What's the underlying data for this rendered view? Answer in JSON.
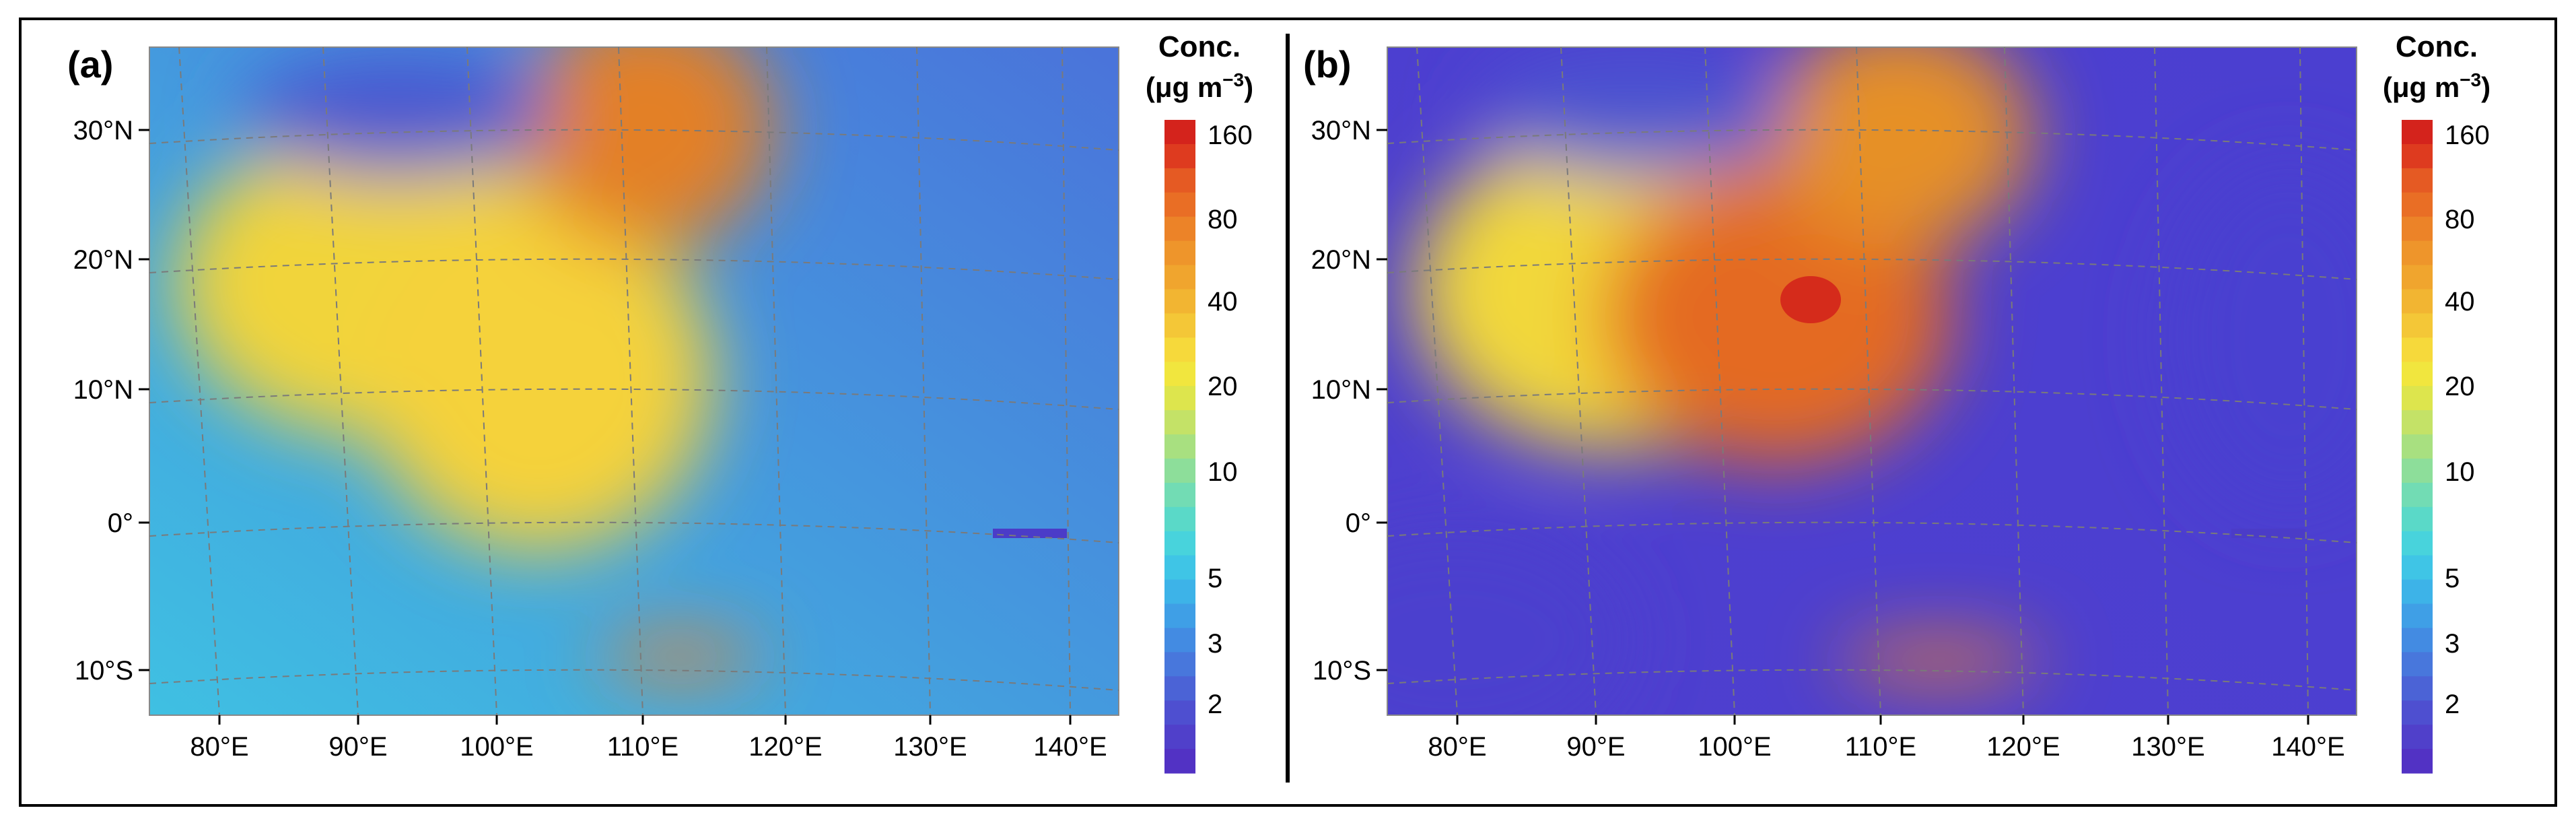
{
  "figure": {
    "panels": [
      {
        "label": "(a)",
        "map": "a"
      },
      {
        "label": "(b)",
        "map": "b"
      }
    ],
    "lat_ticks": [
      "30°N",
      "20°N",
      "10°N",
      "0°",
      "10°S"
    ],
    "lon_ticks": [
      "80°E",
      "90°E",
      "100°E",
      "110°E",
      "120°E",
      "130°E",
      "140°E"
    ],
    "colorbar": {
      "title_line1": "Conc.",
      "title_line2": "(μg m",
      "title_sup": "−3",
      "title_close": ")",
      "tick_labels": [
        "160",
        "80",
        "40",
        "20",
        "10",
        "5",
        "3",
        "2"
      ],
      "colors": [
        "#d4231c",
        "#de3b1f",
        "#e55a23",
        "#e96e25",
        "#ec8328",
        "#ee952b",
        "#f0a52e",
        "#f2b532",
        "#f4c737",
        "#f6d93b",
        "#f1e63e",
        "#dde54d",
        "#c4e267",
        "#a8e080",
        "#8dde9a",
        "#72dcb4",
        "#5ad9c8",
        "#48d3dc",
        "#3fc5e6",
        "#3db3e8",
        "#3f9fe6",
        "#438be2",
        "#4877dc",
        "#4b63d6",
        "#4e4fd0",
        "#5040ca",
        "#5232c4"
      ]
    },
    "maps": {
      "a": {
        "lower_left": "#3fc0e2",
        "upper_right": "#4a73da",
        "south_india": "#f1d43a",
        "indochina": "#f5d23a",
        "north_china": "#e38025",
        "tibet": "#4a55d0",
        "java": "#ec8028"
      },
      "b": {
        "lower_left": "#4e3fcf",
        "upper_right": "#4b3fd0",
        "south_india": "#f2d83a",
        "indochina": "#e46a22",
        "north_china": "#e69028",
        "tibet": "#4c55d0",
        "java": "#ec8028",
        "hotspot": "#d2201a"
      }
    }
  }
}
